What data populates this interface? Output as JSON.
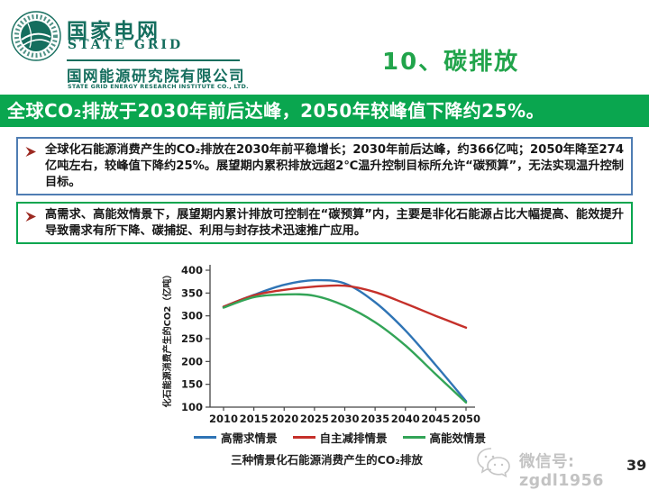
{
  "header": {
    "brand_cn": "国家电网",
    "brand_en": "STATE GRID",
    "institute_cn": "国网能源研究院有限公司",
    "institute_en": "STATE GRID ENERGY RESEARCH INSTITUTE CO., LTD.",
    "slide_title": "10、碳排放"
  },
  "banner": {
    "text": "全球CO₂排放于2030年前后达峰，2050年较峰值下降约25%。"
  },
  "bullets": [
    {
      "text": "全球化石能源消费产生的CO₂排放在2030年前平稳增长；2030年前后达峰，约366亿吨；2050年降至274亿吨左右，较峰值下降约25%。展望期内累积排放远超2℃温升控制目标所允许“碳预算”，无法实现温升控制目标。"
    },
    {
      "text": "高需求、高能效情景下，展望期内累计排放可控制在“碳预算”内，主要是非化石能源占比大幅提高、能效提升导致需求有所下降、碳捕捉、利用与封存技术迅速推广应用。"
    }
  ],
  "chart_data": {
    "type": "line",
    "title": "三种情景化石能源消费产生的CO₂排放",
    "xlabel": "",
    "ylabel": "化石能源消费产生的CO2（亿吨）",
    "x": [
      2010,
      2015,
      2020,
      2025,
      2030,
      2035,
      2040,
      2045,
      2050
    ],
    "ylim": [
      100,
      400
    ],
    "ytick_step": 50,
    "grid": false,
    "legend_position": "bottom",
    "series": [
      {
        "name": "高需求情景",
        "color": "#2f74b5",
        "values": [
          320,
          346,
          368,
          378,
          371,
          330,
          268,
          192,
          113
        ]
      },
      {
        "name": "自主减排情景",
        "color": "#c5302a",
        "values": [
          320,
          345,
          357,
          364,
          366,
          352,
          327,
          300,
          274
        ]
      },
      {
        "name": "高能效情景",
        "color": "#33a457",
        "values": [
          318,
          341,
          347,
          344,
          322,
          286,
          235,
          172,
          110
        ]
      }
    ]
  },
  "footer": {
    "wechat_label": "微信号: zgdl1956",
    "page_number": "39"
  },
  "colors": {
    "brand_teal": "#156e5e",
    "title_green": "#21a44b",
    "banner_green": "#0aa64f",
    "box1_border": "#4f7db3",
    "box2_border": "#0aa64f",
    "bullet_red": "#9c2a22"
  }
}
